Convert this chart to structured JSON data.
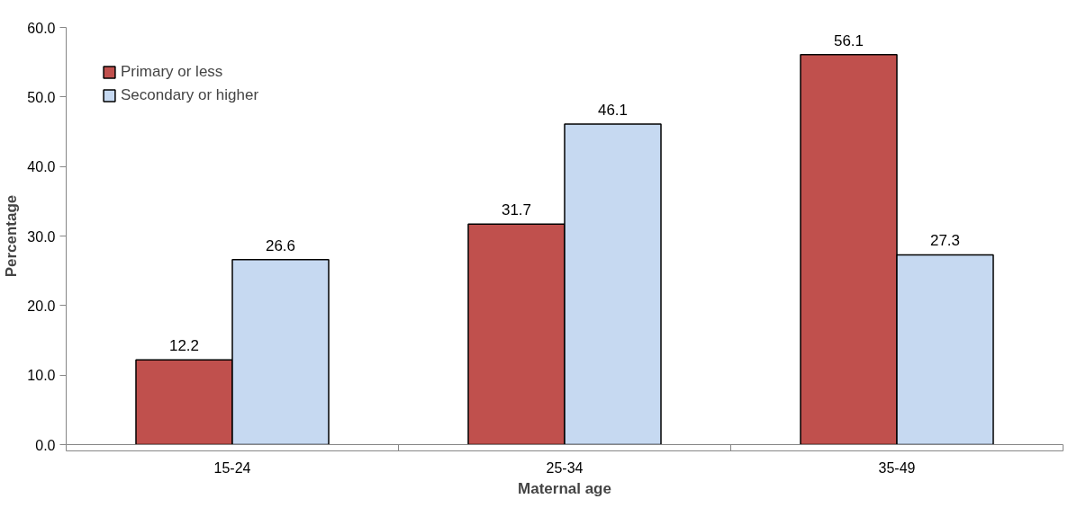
{
  "chart_data": {
    "type": "bar",
    "xlabel": "Maternal age",
    "ylabel": "Percentage",
    "categories": [
      "15-24",
      "25-34",
      "35-49"
    ],
    "series": [
      {
        "name": "Primary or less",
        "color": "#c0504d",
        "values": [
          12.2,
          31.7,
          56.1
        ]
      },
      {
        "name": "Secondary or higher",
        "color": "#c6d9f1",
        "values": [
          26.6,
          46.1,
          27.3
        ]
      }
    ],
    "ylim": [
      0,
      60
    ],
    "yticks": [
      {
        "value": 0,
        "label": "0.0"
      },
      {
        "value": 10,
        "label": "10.0"
      },
      {
        "value": 20,
        "label": "20.0"
      },
      {
        "value": 30,
        "label": "30.0"
      },
      {
        "value": 40,
        "label": "40.0"
      },
      {
        "value": 50,
        "label": "50.0"
      },
      {
        "value": 60,
        "label": "60.0"
      }
    ],
    "data_labels": true,
    "grid": false,
    "legend": "top left"
  }
}
